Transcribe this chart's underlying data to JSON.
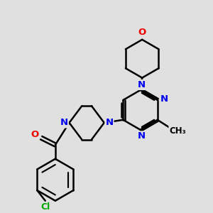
{
  "background_color": "#e0e0e0",
  "atom_colors": {
    "N": "#0000ee",
    "O": "#ee0000",
    "Cl": "#00aa00",
    "C": "#000000"
  },
  "bond_color": "#000000",
  "bond_width": 1.8,
  "dbo": 0.055
}
